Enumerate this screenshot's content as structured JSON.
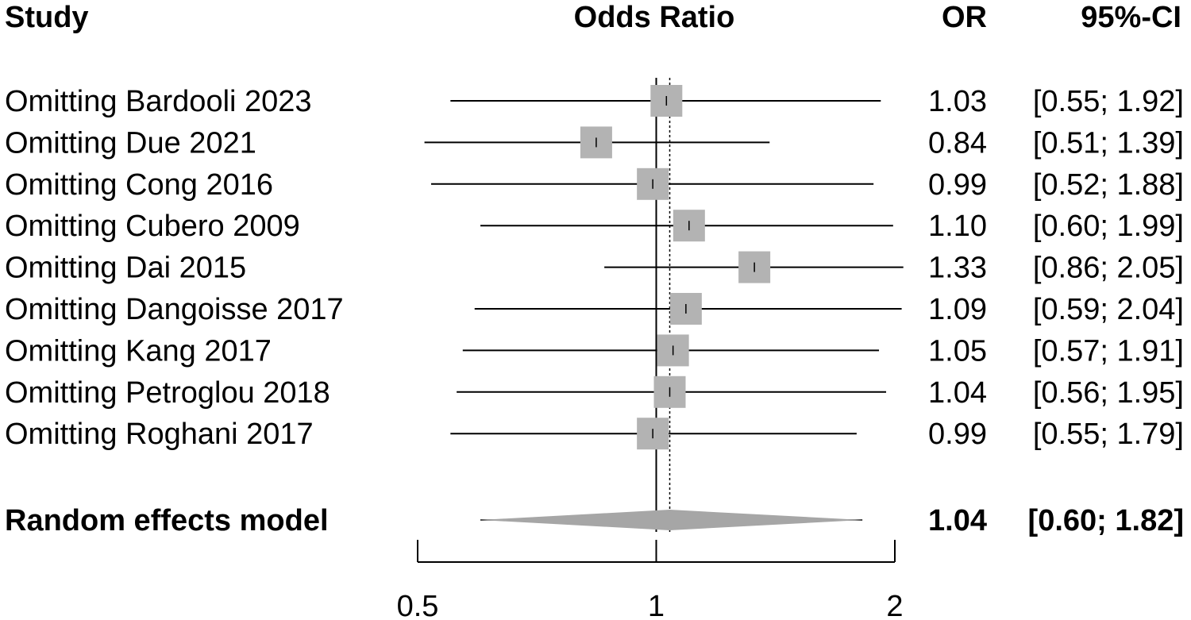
{
  "chart_data": {
    "type": "forest",
    "headers": {
      "study": "Study",
      "effect": "Odds Ratio",
      "or": "OR",
      "ci": "95%-CI"
    },
    "x_axis": {
      "scale": "log",
      "ticks": [
        0.5,
        1,
        2
      ],
      "tick_labels": [
        "0.5",
        "1",
        "2"
      ],
      "reference_line": 1
    },
    "studies": [
      {
        "label": "Omitting Bardooli 2023",
        "or": 1.03,
        "lower": 0.55,
        "upper": 1.92,
        "or_text": "1.03",
        "ci_text": "[0.55; 1.92]"
      },
      {
        "label": "Omitting Due 2021",
        "or": 0.84,
        "lower": 0.51,
        "upper": 1.39,
        "or_text": "0.84",
        "ci_text": "[0.51; 1.39]"
      },
      {
        "label": "Omitting Cong 2016",
        "or": 0.99,
        "lower": 0.52,
        "upper": 1.88,
        "or_text": "0.99",
        "ci_text": "[0.52; 1.88]"
      },
      {
        "label": "Omitting Cubero 2009",
        "or": 1.1,
        "lower": 0.6,
        "upper": 1.99,
        "or_text": "1.10",
        "ci_text": "[0.60; 1.99]"
      },
      {
        "label": "Omitting Dai 2015",
        "or": 1.33,
        "lower": 0.86,
        "upper": 2.05,
        "or_text": "1.33",
        "ci_text": "[0.86; 2.05]"
      },
      {
        "label": "Omitting Dangoisse 2017",
        "or": 1.09,
        "lower": 0.59,
        "upper": 2.04,
        "or_text": "1.09",
        "ci_text": "[0.59; 2.04]"
      },
      {
        "label": "Omitting Kang 2017",
        "or": 1.05,
        "lower": 0.57,
        "upper": 1.91,
        "or_text": "1.05",
        "ci_text": "[0.57; 1.91]"
      },
      {
        "label": "Omitting Petroglou 2018",
        "or": 1.04,
        "lower": 0.56,
        "upper": 1.95,
        "or_text": "1.04",
        "ci_text": "[0.56; 1.95]"
      },
      {
        "label": "Omitting Roghani 2017",
        "or": 0.99,
        "lower": 0.55,
        "upper": 1.79,
        "or_text": "0.99",
        "ci_text": "[0.55; 1.79]"
      }
    ],
    "summary": {
      "label": "Random effects model",
      "or": 1.04,
      "lower": 0.6,
      "upper": 1.82,
      "or_text": "1.04",
      "ci_text": "[0.60; 1.82]"
    },
    "colors": {
      "square": "#b3b3b3",
      "diamond": "#a6a6a6",
      "line": "#000000"
    }
  }
}
